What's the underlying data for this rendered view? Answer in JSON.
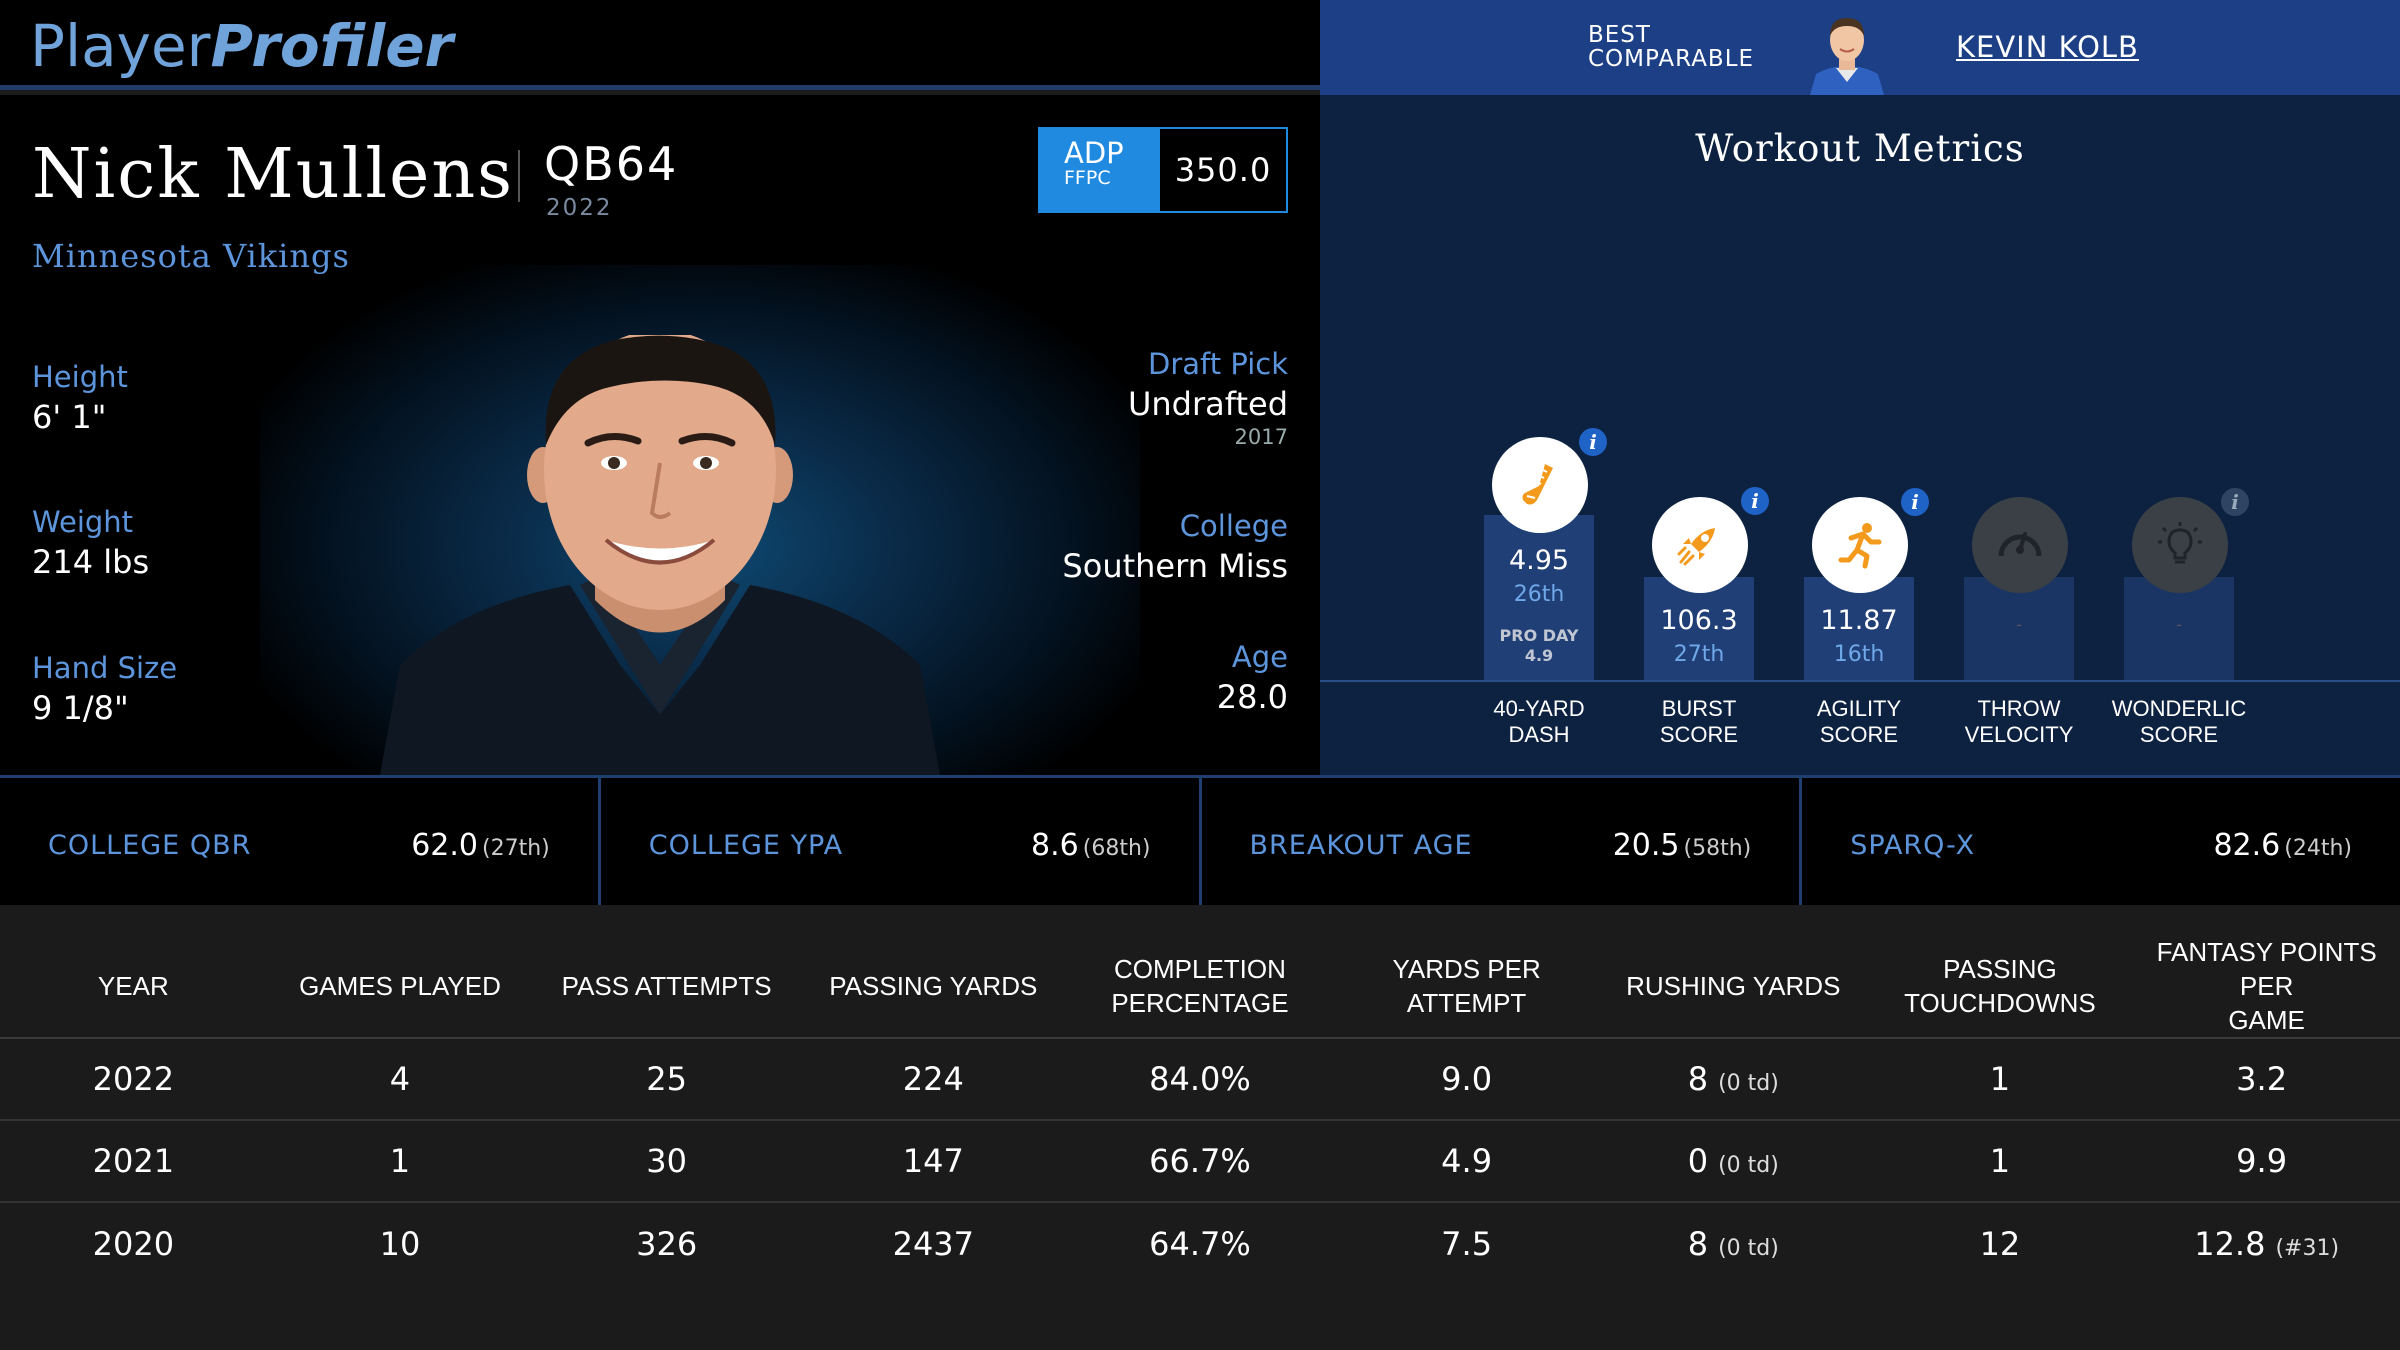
{
  "brand": {
    "part1": "Player",
    "part2": "Profiler"
  },
  "comparable": {
    "label_line1": "BEST",
    "label_line2": "COMPARABLE",
    "name": "KEVIN KOLB"
  },
  "player": {
    "name": "Nick Mullens",
    "position_rank": "QB64",
    "season": "2022",
    "team": "Minnesota Vikings",
    "adp": {
      "label": "ADP",
      "source": "FFPC",
      "value": "350.0"
    },
    "height": {
      "label": "Height",
      "value": "6' 1\""
    },
    "weight": {
      "label": "Weight",
      "value": "214 lbs"
    },
    "hand_size": {
      "label": "Hand Size",
      "value": "9 1/8\""
    },
    "draft_pick": {
      "label": "Draft Pick",
      "value": "Undrafted",
      "year": "2017"
    },
    "college": {
      "label": "College",
      "value": "Southern Miss"
    },
    "age": {
      "label": "Age",
      "value": "28.0"
    }
  },
  "workout": {
    "title": "Workout Metrics",
    "metrics": [
      {
        "label_1": "40-YARD",
        "label_2": "DASH",
        "value": "4.95",
        "rank": "26th",
        "pro_day_label": "PRO DAY",
        "pro_day_value": "4.9",
        "icon": "shoe-icon",
        "percentile": 26
      },
      {
        "label_1": "BURST",
        "label_2": "SCORE",
        "value": "106.3",
        "rank": "27th",
        "icon": "rocket-icon",
        "percentile": 27
      },
      {
        "label_1": "AGILITY",
        "label_2": "SCORE",
        "value": "11.87",
        "rank": "16th",
        "icon": "runner-icon",
        "percentile": 16
      },
      {
        "label_1": "THROW",
        "label_2": "VELOCITY",
        "value": "-",
        "icon": "gauge-icon"
      },
      {
        "label_1": "WONDERLIC",
        "label_2": "SCORE",
        "value": "-",
        "icon": "lightbulb-icon"
      }
    ],
    "info_glyph": "i"
  },
  "key_metrics": [
    {
      "label": "COLLEGE QBR",
      "value": "62.0",
      "rank": "(27th)"
    },
    {
      "label": "COLLEGE YPA",
      "value": "8.6",
      "rank": "(68th)"
    },
    {
      "label": "BREAKOUT AGE",
      "value": "20.5",
      "rank": "(58th)"
    },
    {
      "label": "SPARQ-X",
      "value": "82.6",
      "rank": "(24th)"
    }
  ],
  "stats_table": {
    "headers": {
      "year": "YEAR",
      "games": "GAMES PLAYED",
      "attempts": "PASS ATTEMPTS",
      "yards": "PASSING YARDS",
      "completion_1": "COMPLETION",
      "completion_2": "PERCENTAGE",
      "ypa": "YARDS PER ATTEMPT",
      "rush": "RUSHING YARDS",
      "tds": "PASSING TOUCHDOWNS",
      "fppg_1": "FANTASY POINTS PER",
      "fppg_2": "GAME"
    },
    "rows": [
      {
        "year": "2022",
        "games": "4",
        "attempts": "25",
        "yards": "224",
        "completion": "84.0%",
        "ypa": "9.0",
        "rush": "8",
        "rush_td": "(0 td)",
        "tds": "1",
        "fppg": "3.2",
        "fppg_rank": ""
      },
      {
        "year": "2021",
        "games": "1",
        "attempts": "30",
        "yards": "147",
        "completion": "66.7%",
        "ypa": "4.9",
        "rush": "0",
        "rush_td": "(0 td)",
        "tds": "1",
        "fppg": "9.9",
        "fppg_rank": ""
      },
      {
        "year": "2020",
        "games": "10",
        "attempts": "326",
        "yards": "2437",
        "completion": "64.7%",
        "ypa": "7.5",
        "rush": "8",
        "rush_td": "(0 td)",
        "tds": "12",
        "fppg": "12.8",
        "fppg_rank": "(#31)"
      }
    ]
  }
}
